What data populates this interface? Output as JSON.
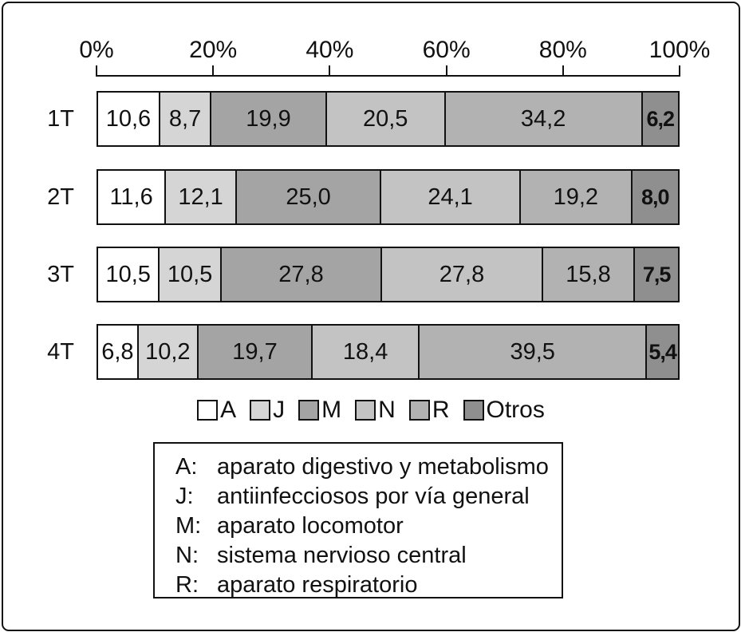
{
  "chart_data": {
    "type": "bar",
    "orientation": "horizontal",
    "stacked": true,
    "grid": false,
    "categories": [
      "1T",
      "2T",
      "3T",
      "4T"
    ],
    "series": [
      {
        "name": "A",
        "color": "#ffffff",
        "values": [
          10.6,
          11.6,
          10.5,
          6.8
        ],
        "labels": [
          "10,6",
          "11,6",
          "10,5",
          "6,8"
        ]
      },
      {
        "name": "J",
        "color": "#d5d5d5",
        "values": [
          8.7,
          12.1,
          10.5,
          10.2
        ],
        "labels": [
          "8,7",
          "12,1",
          "10,5",
          "10,2"
        ]
      },
      {
        "name": "M",
        "color": "#a4a4a4",
        "values": [
          19.9,
          25.0,
          27.8,
          19.7
        ],
        "labels": [
          "19,9",
          "25,0",
          "27,8",
          "19,7"
        ]
      },
      {
        "name": "N",
        "color": "#c3c3c3",
        "values": [
          20.5,
          24.1,
          27.8,
          18.4
        ],
        "labels": [
          "20,5",
          "24,1",
          "27,8",
          "18,4"
        ]
      },
      {
        "name": "R",
        "color": "#b2b2b2",
        "values": [
          34.2,
          19.2,
          15.8,
          39.5
        ],
        "labels": [
          "34,2",
          "19,2",
          "15,8",
          "39,5"
        ]
      },
      {
        "name": "Otros",
        "color": "#8f8f8f",
        "values": [
          6.2,
          8.0,
          7.5,
          5.4
        ],
        "labels": [
          "6,2",
          "8,0",
          "7,5",
          "5,4"
        ],
        "bold_labels": true
      }
    ],
    "x_axis": {
      "ticks": [
        "0%",
        "20%",
        "40%",
        "60%",
        "80%",
        "100%"
      ],
      "range": [
        0,
        100
      ],
      "unit": "%"
    },
    "legend": {
      "position": "bottom",
      "entries": [
        "A",
        "J",
        "M",
        "N",
        "R",
        "Otros"
      ]
    }
  },
  "key": {
    "entries": [
      {
        "letter": "A:",
        "text": "aparato digestivo y metabolismo"
      },
      {
        "letter": "J:",
        "text": "antiinfecciosos por vía general"
      },
      {
        "letter": "M:",
        "text": "aparato locomotor"
      },
      {
        "letter": "N:",
        "text": "sistema nervioso central"
      },
      {
        "letter": "R:",
        "text": "aparato respiratorio"
      }
    ]
  },
  "colors": {
    "ink": "#111111",
    "background": "#ffffff"
  }
}
